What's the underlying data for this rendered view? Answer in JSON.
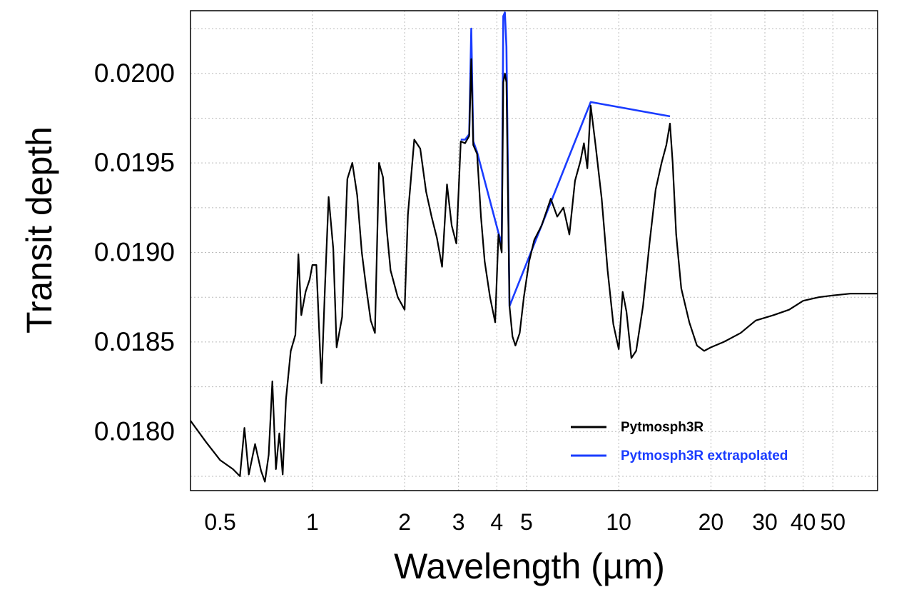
{
  "chart_data": {
    "type": "line",
    "xscale": "log",
    "xlabel": "Wavelength (µm)",
    "ylabel": "Transit depth",
    "xlim": [
      0.4,
      70
    ],
    "ylim": [
      0.01767,
      0.02035
    ],
    "x_ticks": [
      0.5,
      1,
      2,
      3,
      4,
      5,
      10,
      20,
      30,
      40,
      50
    ],
    "x_tick_labels": [
      "0.5",
      "1",
      "2",
      "3",
      "4",
      "5",
      "10",
      "20",
      "30",
      "40",
      "50"
    ],
    "y_ticks": [
      0.018,
      0.0185,
      0.019,
      0.0195,
      0.02
    ],
    "y_tick_labels": [
      "0.0180",
      "0.0185",
      "0.0190",
      "0.0195",
      "0.0200"
    ],
    "grid": true,
    "legend_position": "bottom-right",
    "series": [
      {
        "name": "Pytmosph3R",
        "color": "#000000",
        "x": [
          0.4,
          0.45,
          0.5,
          0.55,
          0.58,
          0.6,
          0.62,
          0.65,
          0.68,
          0.7,
          0.72,
          0.74,
          0.76,
          0.78,
          0.8,
          0.82,
          0.85,
          0.88,
          0.9,
          0.92,
          0.95,
          0.98,
          1.0,
          1.03,
          1.07,
          1.1,
          1.13,
          1.17,
          1.2,
          1.25,
          1.3,
          1.35,
          1.4,
          1.45,
          1.5,
          1.55,
          1.6,
          1.65,
          1.7,
          1.75,
          1.8,
          1.9,
          2.0,
          2.05,
          2.15,
          2.25,
          2.35,
          2.45,
          2.55,
          2.65,
          2.75,
          2.85,
          2.95,
          3.05,
          3.15,
          3.25,
          3.3,
          3.35,
          3.45,
          3.55,
          3.65,
          3.8,
          3.95,
          4.05,
          4.15,
          4.2,
          4.25,
          4.3,
          4.4,
          4.5,
          4.6,
          4.75,
          4.9,
          5.1,
          5.3,
          5.6,
          6.0,
          6.3,
          6.6,
          6.9,
          7.2,
          7.5,
          7.7,
          7.9,
          8.1,
          8.4,
          8.8,
          9.2,
          9.6,
          10.0,
          10.3,
          10.6,
          11.0,
          11.4,
          12.0,
          12.6,
          13.2,
          13.8,
          14.3,
          14.7,
          15.0,
          15.4,
          16.0,
          17.0,
          18.0,
          19.0,
          20.0,
          22.0,
          25.0,
          28.0,
          32.0,
          36.0,
          40.0,
          45.0,
          50.0,
          57.0,
          65.0,
          70.0
        ],
        "values": [
          0.01806,
          0.01794,
          0.01784,
          0.01779,
          0.01775,
          0.01802,
          0.01776,
          0.01793,
          0.01778,
          0.01772,
          0.01787,
          0.01828,
          0.01779,
          0.01799,
          0.01776,
          0.01818,
          0.01845,
          0.01854,
          0.01899,
          0.01865,
          0.01878,
          0.01885,
          0.01893,
          0.01893,
          0.01827,
          0.01882,
          0.01931,
          0.01902,
          0.01847,
          0.01864,
          0.01941,
          0.0195,
          0.01932,
          0.019,
          0.0188,
          0.01862,
          0.01855,
          0.0195,
          0.01942,
          0.01912,
          0.0189,
          0.01875,
          0.01868,
          0.01921,
          0.01963,
          0.01958,
          0.01934,
          0.0192,
          0.01908,
          0.01892,
          0.01938,
          0.01915,
          0.01905,
          0.01962,
          0.01961,
          0.01965,
          0.02008,
          0.0196,
          0.01955,
          0.0192,
          0.01895,
          0.01875,
          0.01861,
          0.0191,
          0.019,
          0.01995,
          0.02,
          0.01995,
          0.0187,
          0.01853,
          0.01848,
          0.01855,
          0.01875,
          0.01895,
          0.01907,
          0.01915,
          0.0193,
          0.0192,
          0.01925,
          0.0191,
          0.0194,
          0.01951,
          0.01961,
          0.01947,
          0.01982,
          0.0196,
          0.0193,
          0.0189,
          0.0186,
          0.01846,
          0.01878,
          0.01867,
          0.01841,
          0.01845,
          0.0187,
          0.01905,
          0.01935,
          0.0195,
          0.0196,
          0.01972,
          0.0195,
          0.0191,
          0.0188,
          0.01861,
          0.01848,
          0.01845,
          0.01847,
          0.0185,
          0.01855,
          0.01862,
          0.01865,
          0.01868,
          0.01873,
          0.01875,
          0.01876,
          0.01877,
          0.01877,
          0.01877
        ]
      },
      {
        "name": "Pytmosph3R extrapolated",
        "color": "#1a3cff",
        "x": [
          3.05,
          3.15,
          3.25,
          3.3,
          3.35,
          3.45,
          4.05,
          4.15,
          4.2,
          4.25,
          4.3,
          4.4,
          8.1,
          14.7
        ],
        "values": [
          0.01963,
          0.01963,
          0.01966,
          0.02025,
          0.01962,
          0.01956,
          0.01911,
          0.01905,
          0.02032,
          0.02034,
          0.02015,
          0.0187,
          0.01984,
          0.01976
        ]
      }
    ]
  }
}
